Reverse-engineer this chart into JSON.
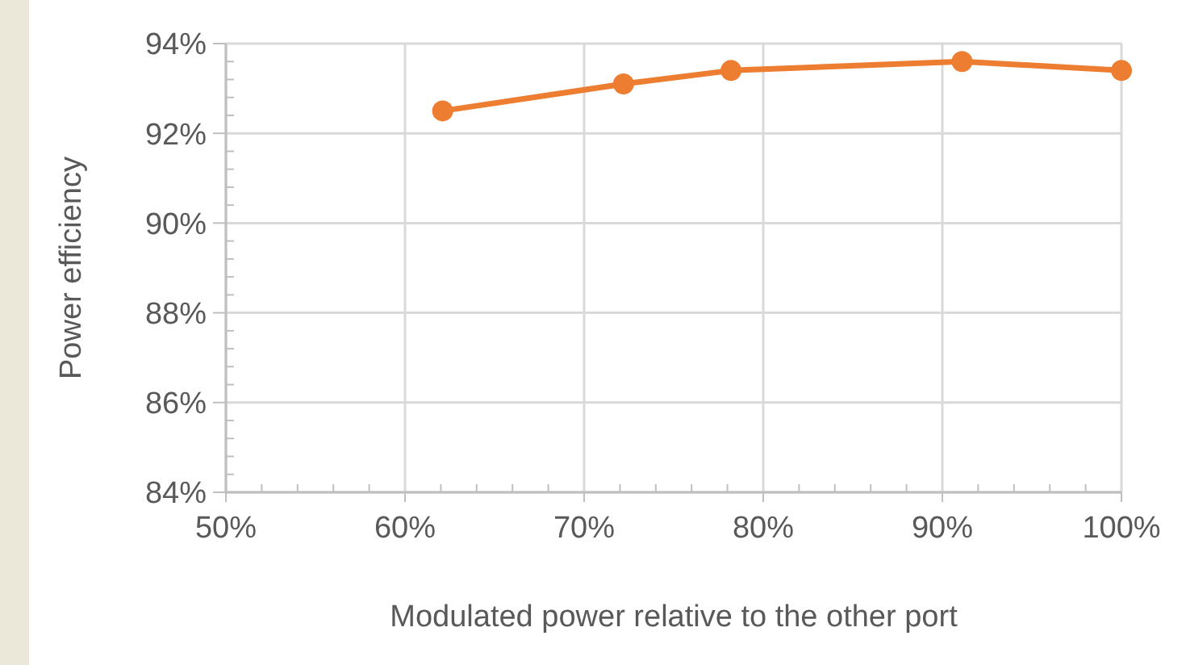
{
  "chart_data": {
    "type": "line",
    "xlabel": "Modulated power relative to the other port",
    "ylabel": "Power efficiency",
    "x": [
      62.1,
      72.2,
      78.2,
      91.1,
      100
    ],
    "series": [
      {
        "color": "#ed7d31",
        "values": [
          92.5,
          93.1,
          93.4,
          93.6,
          93.4
        ]
      }
    ],
    "marker": "circle",
    "grid": true,
    "xlim": [
      50,
      100
    ],
    "ylim": [
      84,
      94
    ],
    "xticks": [
      {
        "value": 50,
        "label": "50%"
      },
      {
        "value": 52,
        "label": null
      },
      {
        "value": 54,
        "label": null
      },
      {
        "value": 56,
        "label": null
      },
      {
        "value": 58,
        "label": null
      },
      {
        "value": 60,
        "label": "60%"
      },
      {
        "value": 62,
        "label": null
      },
      {
        "value": 64,
        "label": null
      },
      {
        "value": 66,
        "label": null
      },
      {
        "value": 68,
        "label": null
      },
      {
        "value": 70,
        "label": "70%"
      },
      {
        "value": 72,
        "label": null
      },
      {
        "value": 74,
        "label": null
      },
      {
        "value": 76,
        "label": null
      },
      {
        "value": 78,
        "label": null
      },
      {
        "value": 80,
        "label": "80%"
      },
      {
        "value": 82,
        "label": null
      },
      {
        "value": 84,
        "label": null
      },
      {
        "value": 86,
        "label": null
      },
      {
        "value": 88,
        "label": null
      },
      {
        "value": 90,
        "label": "90%"
      },
      {
        "value": 92,
        "label": null
      },
      {
        "value": 94,
        "label": null
      },
      {
        "value": 96,
        "label": null
      },
      {
        "value": 98,
        "label": null
      },
      {
        "value": 100,
        "label": "100%"
      }
    ],
    "yticks": [
      {
        "value": 84,
        "label": "84%"
      },
      {
        "value": 84.4,
        "label": null
      },
      {
        "value": 84.8,
        "label": null
      },
      {
        "value": 85.2,
        "label": null
      },
      {
        "value": 85.6,
        "label": null
      },
      {
        "value": 86,
        "label": "86%"
      },
      {
        "value": 86.4,
        "label": null
      },
      {
        "value": 86.8,
        "label": null
      },
      {
        "value": 87.2,
        "label": null
      },
      {
        "value": 87.6,
        "label": null
      },
      {
        "value": 88,
        "label": "88%"
      },
      {
        "value": 88.4,
        "label": null
      },
      {
        "value": 88.8,
        "label": null
      },
      {
        "value": 89.2,
        "label": null
      },
      {
        "value": 89.6,
        "label": null
      },
      {
        "value": 90,
        "label": "90%"
      },
      {
        "value": 90.4,
        "label": null
      },
      {
        "value": 90.8,
        "label": null
      },
      {
        "value": 91.2,
        "label": null
      },
      {
        "value": 91.6,
        "label": null
      },
      {
        "value": 92,
        "label": "92%"
      },
      {
        "value": 92.4,
        "label": null
      },
      {
        "value": 92.8,
        "label": null
      },
      {
        "value": 93.2,
        "label": null
      },
      {
        "value": 93.6,
        "label": null
      },
      {
        "value": 94,
        "label": "94%"
      }
    ]
  }
}
